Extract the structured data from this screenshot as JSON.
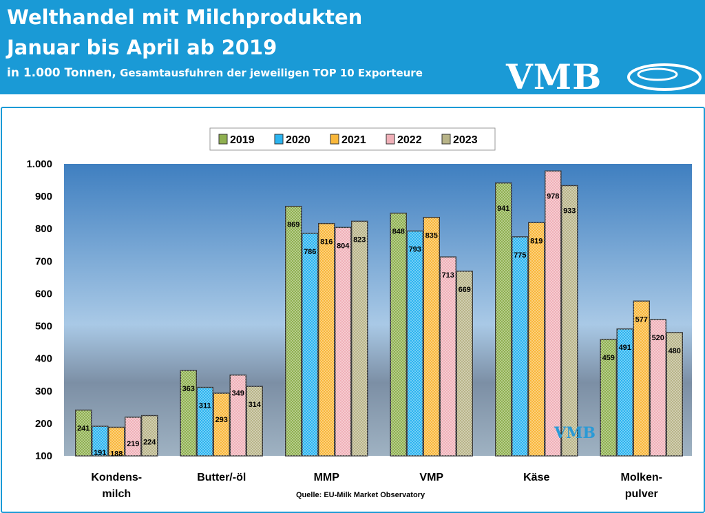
{
  "header": {
    "title_line1": "Welthandel mit Milchprodukten",
    "title_line2": "Januar bis April ab 2019",
    "subtitle_unit": "in 1.000 Tonnen,",
    "subtitle_rest": " Gesamtausfuhren der jeweiligen TOP 10 Exporteure",
    "logo": "VMB",
    "color": "#1a9ad6"
  },
  "chart_data": {
    "type": "bar",
    "title": "",
    "xlabel": "",
    "ylabel": "",
    "ylim": [
      100,
      1000
    ],
    "yticks": [
      "100",
      "200",
      "300",
      "400",
      "500",
      "600",
      "700",
      "800",
      "900",
      "1.000"
    ],
    "categories": [
      [
        "Kondens-",
        "milch"
      ],
      [
        "Butter/-öl"
      ],
      [
        "MMP"
      ],
      [
        "VMP"
      ],
      [
        "Käse"
      ],
      [
        "Molken-",
        "pulver"
      ]
    ],
    "series": [
      {
        "name": "2019",
        "color": "#8fb050",
        "values": [
          241,
          363,
          869,
          848,
          941,
          459
        ]
      },
      {
        "name": "2020",
        "color": "#2bb4f0",
        "values": [
          191,
          311,
          786,
          793,
          775,
          491
        ]
      },
      {
        "name": "2021",
        "color": "#f9b73a",
        "values": [
          188,
          293,
          816,
          835,
          819,
          577
        ]
      },
      {
        "name": "2022",
        "color": "#f0b0b8",
        "values": [
          219,
          349,
          804,
          713,
          978,
          520
        ]
      },
      {
        "name": "2023",
        "color": "#b8b488",
        "values": [
          224,
          314,
          823,
          669,
          933,
          480
        ]
      }
    ],
    "grid": false,
    "legend_placement": "top",
    "source": "Quelle: EU-Milk Market Observatory",
    "watermark": "VMB"
  }
}
